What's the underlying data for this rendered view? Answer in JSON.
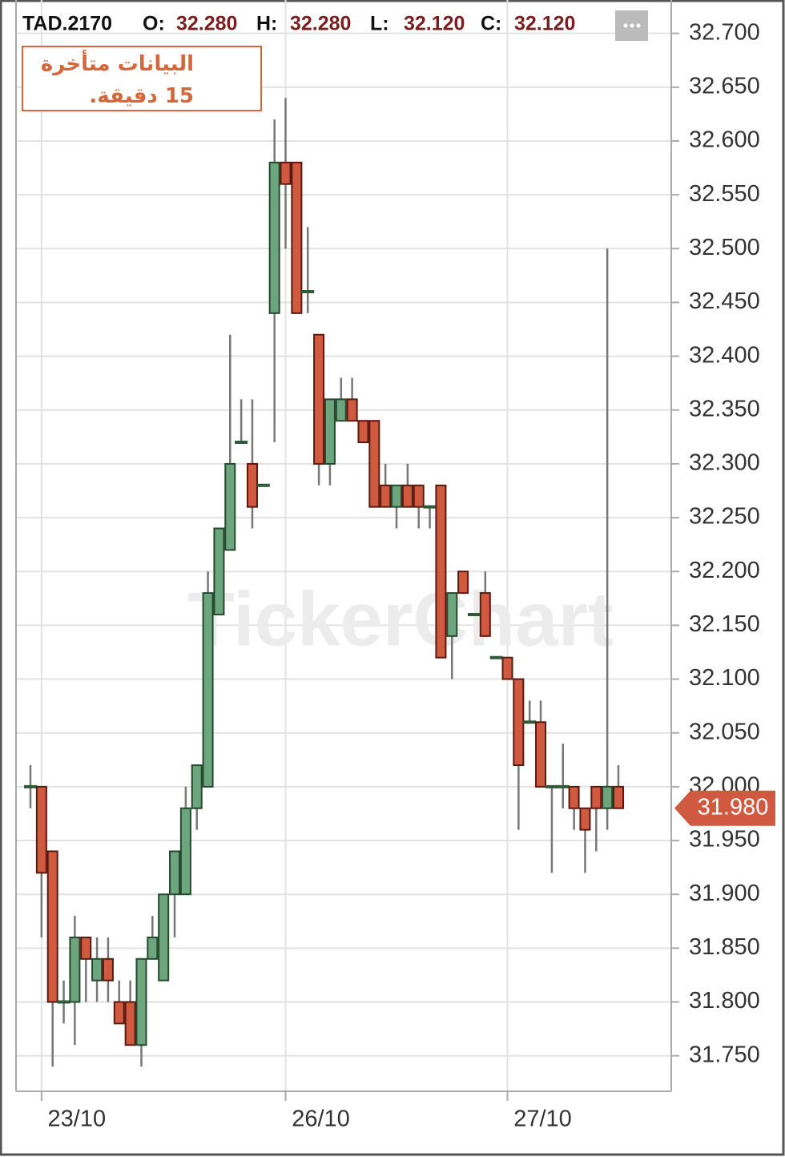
{
  "chart_data": {
    "type": "candlestick",
    "symbol": "TAD.2170",
    "ohlc_header": [
      {
        "name": "O:",
        "value": {
          "value": 32.28,
          "label": "32.280"
        }
      },
      {
        "name": "H:",
        "value": {
          "value": 32.28,
          "label": "32.280"
        }
      },
      {
        "name": "L:",
        "value": {
          "value": 32.12,
          "label": "32.120"
        }
      },
      {
        "name": "C:",
        "value": {
          "value": 32.12,
          "label": "32.120"
        }
      }
    ],
    "notice": "البيانات متأخرة 15 دقيقة.",
    "watermark": "TickerChart",
    "categories": [
      null,
      "23/10",
      null,
      null,
      null,
      null,
      null,
      null,
      null,
      null,
      null,
      null,
      null,
      null,
      null,
      null,
      null,
      null,
      null,
      null,
      null,
      null,
      null,
      "26/10",
      null,
      null,
      null,
      null,
      null,
      null,
      null,
      null,
      null,
      null,
      null,
      null,
      null,
      null,
      null,
      null,
      null,
      null,
      null,
      "27/10",
      null,
      null,
      null,
      null,
      null,
      null,
      null,
      null,
      null,
      null
    ],
    "open": [
      32.0,
      32.0,
      31.94,
      31.8,
      31.8,
      31.86,
      31.82,
      31.84,
      31.8,
      31.8,
      31.76,
      31.84,
      31.82,
      31.9,
      31.9,
      31.98,
      32.0,
      32.16,
      32.22,
      32.32,
      32.3,
      32.28,
      32.44,
      32.58,
      32.58,
      32.46,
      32.42,
      32.3,
      32.34,
      32.36,
      32.34,
      32.34,
      32.28,
      32.26,
      32.28,
      32.28,
      32.26,
      32.28,
      32.14,
      32.2,
      32.16,
      32.18,
      32.12,
      32.12,
      32.1,
      32.06,
      32.06,
      32.0,
      32.0,
      32.0,
      31.98,
      32.0,
      31.98,
      32.0
    ],
    "high": [
      32.02,
      32.0,
      31.94,
      31.82,
      31.88,
      31.86,
      31.86,
      31.86,
      31.82,
      31.82,
      31.84,
      31.88,
      31.9,
      31.94,
      32.0,
      32.02,
      32.2,
      32.24,
      32.42,
      32.36,
      32.36,
      32.28,
      32.62,
      32.64,
      32.58,
      32.52,
      32.42,
      32.36,
      32.38,
      32.38,
      32.34,
      32.34,
      32.3,
      32.28,
      32.3,
      32.28,
      32.26,
      32.28,
      32.18,
      32.2,
      32.16,
      32.2,
      32.12,
      32.12,
      32.1,
      32.08,
      32.08,
      32.0,
      32.04,
      32.0,
      31.98,
      32.0,
      32.5,
      32.02
    ],
    "low": [
      31.98,
      31.86,
      31.74,
      31.78,
      31.76,
      31.8,
      31.8,
      31.8,
      31.78,
      31.76,
      31.74,
      31.84,
      31.82,
      31.86,
      31.9,
      31.96,
      32.0,
      32.16,
      32.22,
      32.32,
      32.24,
      32.28,
      32.32,
      32.5,
      32.44,
      32.44,
      32.28,
      32.28,
      32.34,
      32.34,
      32.32,
      32.26,
      32.26,
      32.24,
      32.26,
      32.24,
      32.24,
      32.12,
      32.1,
      32.18,
      32.16,
      32.14,
      32.12,
      32.1,
      31.96,
      32.06,
      32.0,
      31.92,
      31.98,
      31.96,
      31.92,
      31.94,
      31.96,
      31.98
    ],
    "close": [
      32.0,
      31.92,
      31.8,
      31.8,
      31.86,
      31.84,
      31.84,
      31.82,
      31.78,
      31.76,
      31.84,
      31.86,
      31.9,
      31.94,
      31.98,
      32.02,
      32.18,
      32.24,
      32.3,
      32.32,
      32.26,
      32.28,
      32.58,
      32.56,
      32.44,
      32.46,
      32.3,
      32.36,
      32.36,
      32.34,
      32.32,
      32.26,
      32.26,
      32.28,
      32.26,
      32.26,
      32.26,
      32.12,
      32.18,
      32.18,
      32.16,
      32.14,
      32.12,
      32.1,
      32.02,
      32.06,
      32.0,
      32.0,
      32.0,
      31.98,
      31.96,
      31.98,
      32.0,
      31.98
    ],
    "up_color": "#6ca57e",
    "down_color": "#cf5a40",
    "last_price": {
      "value": 31.98,
      "label": "31.980"
    },
    "ylim": [
      31.717,
      32.731
    ],
    "yticks": [
      {
        "value": 31.75,
        "label": "31.750"
      },
      {
        "value": 31.8,
        "label": "31.800"
      },
      {
        "value": 31.85,
        "label": "31.850"
      },
      {
        "value": 31.9,
        "label": "31.900"
      },
      {
        "value": 31.95,
        "label": "31.950"
      },
      {
        "value": 32.0,
        "label": "32.000"
      },
      {
        "value": 32.05,
        "label": "32.050"
      },
      {
        "value": 32.1,
        "label": "32.100"
      },
      {
        "value": 32.15,
        "label": "32.150"
      },
      {
        "value": 32.2,
        "label": "32.200"
      },
      {
        "value": 32.25,
        "label": "32.250"
      },
      {
        "value": 32.3,
        "label": "32.300"
      },
      {
        "value": 32.35,
        "label": "32.350"
      },
      {
        "value": 32.4,
        "label": "32.400"
      },
      {
        "value": 32.45,
        "label": "32.450"
      },
      {
        "value": 32.5,
        "label": "32.500"
      },
      {
        "value": 32.55,
        "label": "32.550"
      },
      {
        "value": 32.6,
        "label": "32.600"
      },
      {
        "value": 32.65,
        "label": "32.650"
      },
      {
        "value": 32.7,
        "label": "32.700"
      }
    ],
    "grid": true
  }
}
